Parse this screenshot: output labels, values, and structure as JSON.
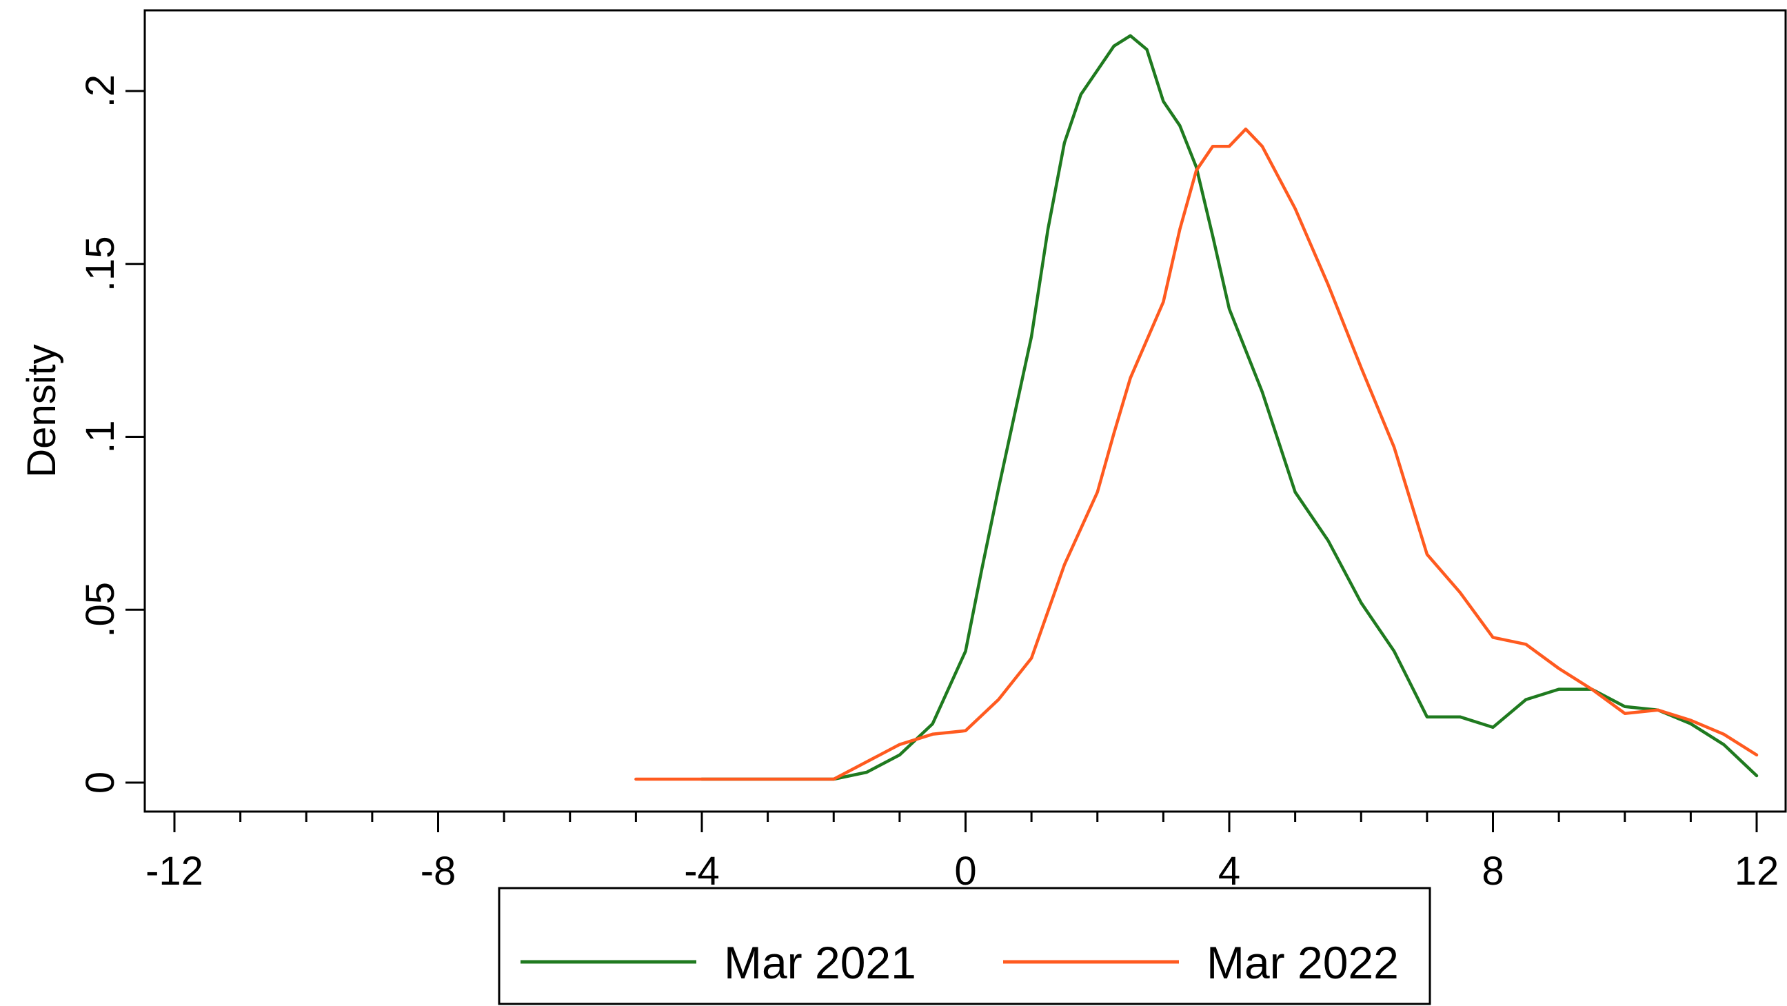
{
  "chart_data": {
    "type": "line",
    "title": "",
    "xlabel": "",
    "ylabel": "Density",
    "xlim": [
      -12,
      12
    ],
    "ylim": [
      0,
      0.22
    ],
    "x_ticks": [
      -12,
      -8,
      -4,
      0,
      4,
      8,
      12
    ],
    "x_tick_labels": [
      "-12",
      "-8",
      "-4",
      "0",
      "4",
      "8",
      "12"
    ],
    "y_ticks": [
      0,
      0.05,
      0.1,
      0.15,
      0.2
    ],
    "y_tick_labels": [
      "0",
      ".05",
      ".1",
      ".15",
      ".2"
    ],
    "grid": false,
    "legend_position": "bottom",
    "series": [
      {
        "name": "Mar 2021",
        "color": "#1f7a1f",
        "points": [
          [
            -4,
            0.001
          ],
          [
            -3,
            0.001
          ],
          [
            -2,
            0.001
          ],
          [
            -1.5,
            0.003
          ],
          [
            -1,
            0.008
          ],
          [
            -0.5,
            0.017
          ],
          [
            0,
            0.038
          ],
          [
            0.25,
            0.062
          ],
          [
            0.5,
            0.085
          ],
          [
            1,
            0.129
          ],
          [
            1.25,
            0.16
          ],
          [
            1.5,
            0.185
          ],
          [
            1.75,
            0.199
          ],
          [
            2,
            0.206
          ],
          [
            2.25,
            0.213
          ],
          [
            2.5,
            0.216
          ],
          [
            2.75,
            0.212
          ],
          [
            3,
            0.197
          ],
          [
            3.25,
            0.19
          ],
          [
            3.5,
            0.178
          ],
          [
            3.75,
            0.158
          ],
          [
            4,
            0.137
          ],
          [
            4.5,
            0.113
          ],
          [
            5,
            0.084
          ],
          [
            5.5,
            0.07
          ],
          [
            6,
            0.052
          ],
          [
            6.5,
            0.038
          ],
          [
            7,
            0.019
          ],
          [
            7.5,
            0.019
          ],
          [
            8,
            0.016
          ],
          [
            8.5,
            0.024
          ],
          [
            9,
            0.027
          ],
          [
            9.5,
            0.027
          ],
          [
            10,
            0.022
          ],
          [
            10.5,
            0.021
          ],
          [
            11,
            0.017
          ],
          [
            11.5,
            0.011
          ],
          [
            12,
            0.002
          ]
        ]
      },
      {
        "name": "Mar 2022",
        "color": "#ff5a1f",
        "points": [
          [
            -5,
            0.001
          ],
          [
            -4,
            0.001
          ],
          [
            -3,
            0.001
          ],
          [
            -2,
            0.001
          ],
          [
            -1.5,
            0.006
          ],
          [
            -1,
            0.011
          ],
          [
            -0.5,
            0.014
          ],
          [
            0,
            0.015
          ],
          [
            0.5,
            0.024
          ],
          [
            1,
            0.036
          ],
          [
            1.5,
            0.063
          ],
          [
            2,
            0.084
          ],
          [
            2.25,
            0.101
          ],
          [
            2.5,
            0.117
          ],
          [
            3,
            0.139
          ],
          [
            3.25,
            0.16
          ],
          [
            3.5,
            0.177
          ],
          [
            3.75,
            0.184
          ],
          [
            4,
            0.184
          ],
          [
            4.25,
            0.189
          ],
          [
            4.5,
            0.184
          ],
          [
            5,
            0.166
          ],
          [
            5.5,
            0.144
          ],
          [
            6,
            0.12
          ],
          [
            6.5,
            0.097
          ],
          [
            7,
            0.066
          ],
          [
            7.5,
            0.055
          ],
          [
            8,
            0.042
          ],
          [
            8.5,
            0.04
          ],
          [
            9,
            0.033
          ],
          [
            9.5,
            0.027
          ],
          [
            10,
            0.02
          ],
          [
            10.5,
            0.021
          ],
          [
            11,
            0.018
          ],
          [
            11.5,
            0.014
          ],
          [
            12,
            0.008
          ]
        ]
      }
    ]
  }
}
